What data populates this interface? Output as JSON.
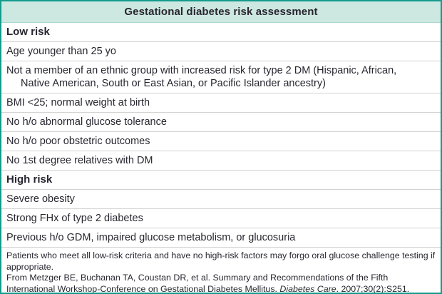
{
  "table": {
    "title": "Gestational diabetes risk assessment",
    "low_risk": {
      "header": "Low risk",
      "rows": [
        {
          "text": "Age younger than 25 yo"
        },
        {
          "text": "Not a member of an ethnic group with increased risk for type 2 DM (Hispanic, African,",
          "text2": "Native American, South or East Asian, or Pacific Islander ancestry)"
        },
        {
          "text": "BMI <25; normal weight at birth"
        },
        {
          "text": "No h/o abnormal glucose tolerance"
        },
        {
          "text": "No h/o poor obstetric outcomes"
        },
        {
          "text": "No 1st degree relatives with DM"
        }
      ]
    },
    "high_risk": {
      "header": "High risk",
      "rows": [
        {
          "text": "Severe obesity"
        },
        {
          "text": "Strong FHx of type 2 diabetes"
        },
        {
          "text": "Previous h/o GDM, impaired glucose metabolism, or glucosuria"
        }
      ]
    },
    "footnotes": {
      "note": "Patients who meet all low-risk criteria and have no high-risk factors may forgo oral glucose challenge testing if appropriate.",
      "source_prefix": "From Metzger BE, Buchanan TA, Coustan DR, et al. Summary and Recommendations of the Fifth International Workshop-Conference on Gestational Diabetes Mellitus. ",
      "source_journal": "Diabetes Care",
      "source_suffix": ". 2007;30(2):S251."
    },
    "colors": {
      "border_teal": "#149b8d",
      "header_mint": "#cde8e1",
      "divider_gray": "#d3d3d3",
      "text_dark": "#28262f"
    }
  }
}
